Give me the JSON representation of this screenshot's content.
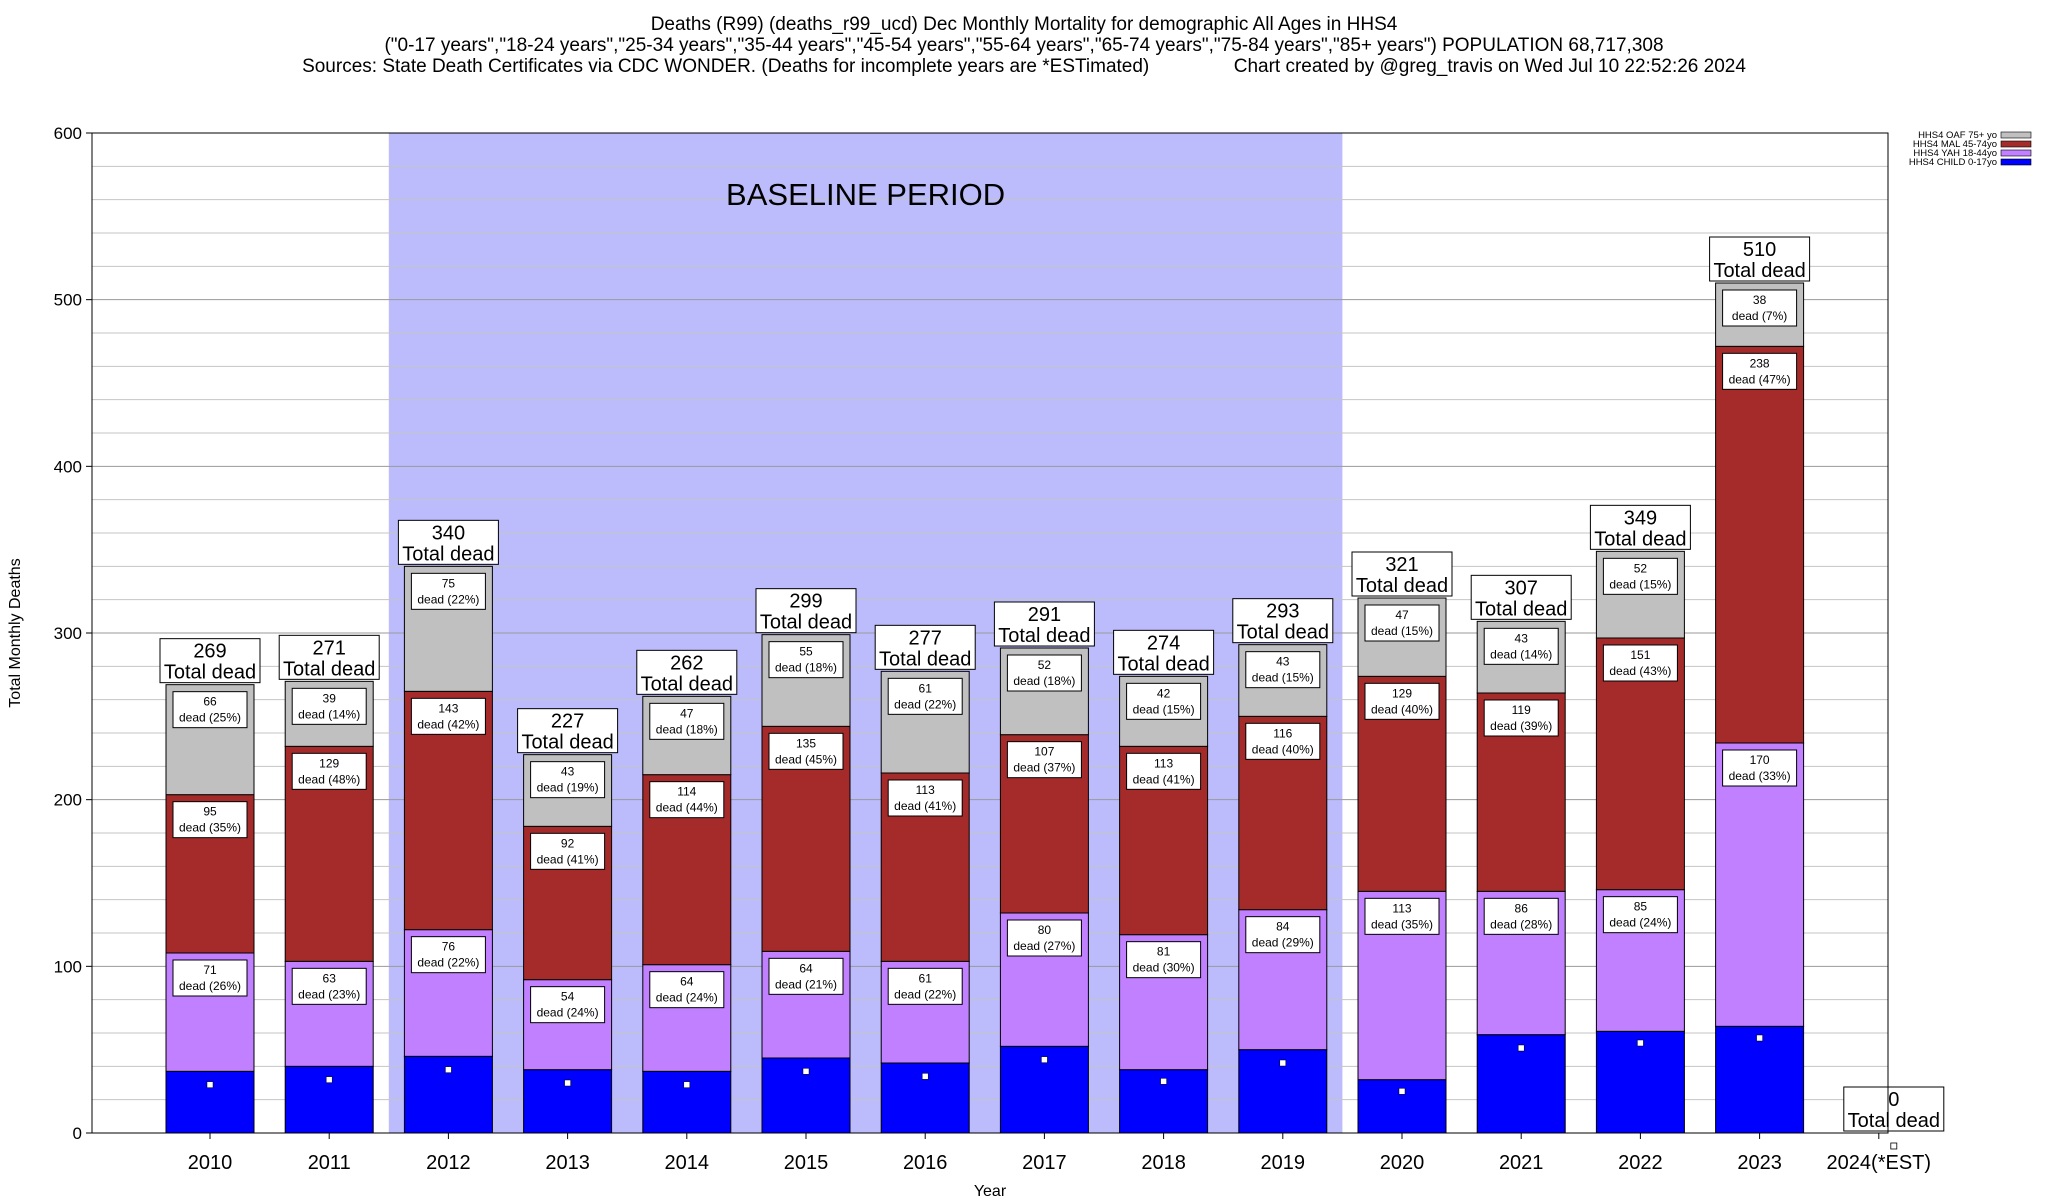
{
  "header": {
    "line1": "Deaths (R99) (deaths_r99_ucd) Dec Monthly Mortality for demographic All Ages in HHS4",
    "line2": "(\"0-17 years\",\"18-24 years\",\"25-34 years\",\"35-44 years\",\"45-54 years\",\"55-64 years\",\"65-74 years\",\"75-84 years\",\"85+ years\") POPULATION 68,717,308",
    "line3": "Sources: State Death Certificates via CDC WONDER. (Deaths for incomplete years are *ESTimated)                Chart created by @greg_travis on Wed Jul 10 22:52:26 2024"
  },
  "chart_data": {
    "type": "bar",
    "stacked": true,
    "xlabel": "Year",
    "ylabel": "Total Monthly Deaths",
    "ylim": [
      0,
      600
    ],
    "yticks": [
      0,
      100,
      200,
      300,
      400,
      500,
      600
    ],
    "categories": [
      "2010",
      "2011",
      "2012",
      "2013",
      "2014",
      "2015",
      "2016",
      "2017",
      "2018",
      "2019",
      "2020",
      "2021",
      "2022",
      "2023",
      "2024(*EST)"
    ],
    "baseline": {
      "label": "BASELINE PERIOD",
      "from": "2012",
      "to": "2019",
      "color": "#bcbcfc"
    },
    "series": [
      {
        "name": "HHS4 CHILD 0-17yo",
        "color": "#0000ff",
        "values": [
          37,
          40,
          46,
          38,
          37,
          45,
          42,
          52,
          38,
          50,
          32,
          59,
          61,
          64,
          0
        ]
      },
      {
        "name": "HHS4 YAH 18-44yo",
        "color": "#c080ff",
        "values": [
          71,
          63,
          76,
          54,
          64,
          64,
          61,
          80,
          81,
          84,
          113,
          86,
          85,
          170,
          0
        ],
        "value_labels": [
          "71",
          "63",
          "76",
          "54",
          "64",
          "64",
          "61",
          "80",
          "81",
          "84",
          "113",
          "86",
          "85",
          "170",
          ""
        ],
        "pct_labels": [
          "dead (26%)",
          "dead (23%)",
          "dead (22%)",
          "dead (24%)",
          "dead (24%)",
          "dead (21%)",
          "dead (22%)",
          "dead (27%)",
          "dead (30%)",
          "dead (29%)",
          "dead (35%)",
          "dead (28%)",
          "dead (24%)",
          "dead (33%)",
          ""
        ]
      },
      {
        "name": "HHS4 MAL 45-74yo",
        "color": "#a52a2a",
        "values": [
          95,
          129,
          143,
          92,
          114,
          135,
          113,
          107,
          113,
          116,
          129,
          119,
          151,
          238,
          0
        ],
        "value_labels": [
          "95",
          "129",
          "143",
          "92",
          "114",
          "135",
          "113",
          "107",
          "113",
          "116",
          "129",
          "119",
          "151",
          "238",
          ""
        ],
        "pct_labels": [
          "dead (35%)",
          "dead (48%)",
          "dead (42%)",
          "dead (41%)",
          "dead (44%)",
          "dead (45%)",
          "dead (41%)",
          "dead (37%)",
          "dead (41%)",
          "dead (40%)",
          "dead (40%)",
          "dead (39%)",
          "dead (43%)",
          "dead (47%)",
          ""
        ]
      },
      {
        "name": "HHS4 OAF 75+ yo",
        "color": "#c0c0c0",
        "values": [
          66,
          39,
          75,
          43,
          47,
          55,
          61,
          52,
          42,
          43,
          47,
          43,
          52,
          38,
          0
        ],
        "value_labels": [
          "66",
          "39",
          "75",
          "43",
          "47",
          "55",
          "61",
          "52",
          "42",
          "43",
          "47",
          "43",
          "52",
          "38",
          ""
        ],
        "pct_labels": [
          "dead (25%)",
          "dead (14%)",
          "dead (22%)",
          "dead (19%)",
          "dead (18%)",
          "dead (18%)",
          "dead (22%)",
          "dead (18%)",
          "dead (15%)",
          "dead (15%)",
          "dead (15%)",
          "dead (14%)",
          "dead (15%)",
          "dead (7%)",
          ""
        ]
      }
    ],
    "totals": [
      269,
      271,
      340,
      227,
      262,
      299,
      277,
      291,
      274,
      293,
      321,
      307,
      349,
      510,
      0
    ],
    "total_labels": [
      "269",
      "271",
      "340",
      "227",
      "262",
      "299",
      "277",
      "291",
      "274",
      "293",
      "321",
      "307",
      "349",
      "510",
      "0"
    ],
    "total_caption": "Total dead",
    "child_marker_values": [
      29,
      32,
      38,
      30,
      29,
      37,
      34,
      44,
      31,
      42,
      25,
      51,
      54,
      57,
      0
    ],
    "legend": {
      "position": "top-right",
      "entries": [
        "HHS4 OAF 75+ yo",
        "HHS4 MAL 45-74yo",
        "HHS4 YAH 18-44yo",
        "HHS4 CHILD 0-17yo"
      ]
    }
  }
}
